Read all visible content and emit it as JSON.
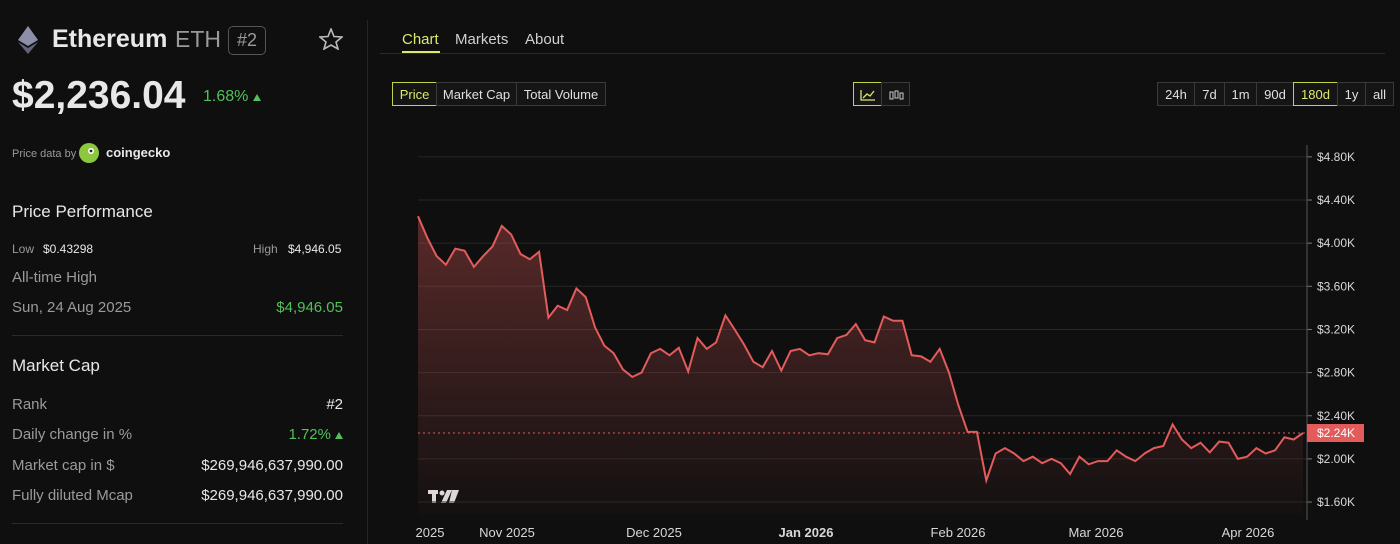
{
  "header": {
    "name": "Ethereum",
    "symbol": "ETH",
    "rank": "#2",
    "price": "$2,236.04",
    "change": "1.68%",
    "price_data_by": "Price data by",
    "source": "coingecko"
  },
  "performance": {
    "title": "Price Performance",
    "low_label": "Low",
    "low": "$0.43298",
    "high_label": "High",
    "high": "$4,946.05",
    "ath_label": "All-time High",
    "ath_date": "Sun, 24 Aug 2025",
    "ath_value": "$4,946.05"
  },
  "market_cap": {
    "title": "Market Cap",
    "rows": [
      [
        "Rank",
        "#2"
      ],
      [
        "Daily change in %",
        "1.72%"
      ],
      [
        "Market cap in $",
        "$269,946,637,990.00"
      ],
      [
        "Fully diluted Mcap",
        "$269,946,637,990.00"
      ]
    ]
  },
  "tabs": [
    "Chart",
    "Markets",
    "About"
  ],
  "metrics": [
    "Price",
    "Market Cap",
    "Total Volume"
  ],
  "ranges": [
    "24h",
    "7d",
    "1m",
    "90d",
    "180d",
    "1y",
    "all"
  ],
  "chart": {
    "type": "line",
    "color": "#e35b5b",
    "x_labels": [
      "2025",
      "Nov 2025",
      "Dec 2025",
      "Jan 2026",
      "Feb 2026",
      "Mar 2026",
      "Apr 2026"
    ],
    "values": [
      4.25,
      4.05,
      3.88,
      3.8,
      3.95,
      3.93,
      3.78,
      3.88,
      3.97,
      4.16,
      4.08,
      3.9,
      3.85,
      3.92,
      3.31,
      3.42,
      3.38,
      3.58,
      3.5,
      3.22,
      3.05,
      2.98,
      2.83,
      2.76,
      2.8,
      2.98,
      3.02,
      2.96,
      3.03,
      2.81,
      3.12,
      3.02,
      3.08,
      3.33,
      3.2,
      3.06,
      2.9,
      2.85,
      3.0,
      2.82,
      3.0,
      3.02,
      2.96,
      2.98,
      2.97,
      3.12,
      3.15,
      3.25,
      3.1,
      3.08,
      3.32,
      3.28,
      3.28,
      2.96,
      2.95,
      2.9,
      3.02,
      2.8,
      2.5,
      2.25,
      2.25,
      1.8,
      2.05,
      2.1,
      2.05,
      1.98,
      2.02,
      1.96,
      2.0,
      1.96,
      1.86,
      2.02,
      1.95,
      1.98,
      1.98,
      2.08,
      2.02,
      1.98,
      2.05,
      2.1,
      2.12,
      2.32,
      2.18,
      2.1,
      2.15,
      2.06,
      2.16,
      2.15,
      2.0,
      2.02,
      2.1,
      2.05,
      2.08,
      2.2,
      2.18,
      2.24
    ],
    "ylim": [
      1.48,
      4.91
    ],
    "yticks": [
      {
        "value": 1.6,
        "label": "$1.60K"
      },
      {
        "value": 2.0,
        "label": "$2.00K"
      },
      {
        "value": 2.4,
        "label": "$2.40K"
      },
      {
        "value": 2.8,
        "label": "$2.80K"
      },
      {
        "value": 3.2,
        "label": "$3.20K"
      },
      {
        "value": 3.6,
        "label": "$3.60K"
      },
      {
        "value": 4.0,
        "label": "$4.00K"
      },
      {
        "value": 4.4,
        "label": "$4.40K"
      },
      {
        "value": 4.8,
        "label": "$4.80K"
      }
    ],
    "last_price": {
      "value": 2.24,
      "label": "$2.24K"
    },
    "grid": true
  }
}
